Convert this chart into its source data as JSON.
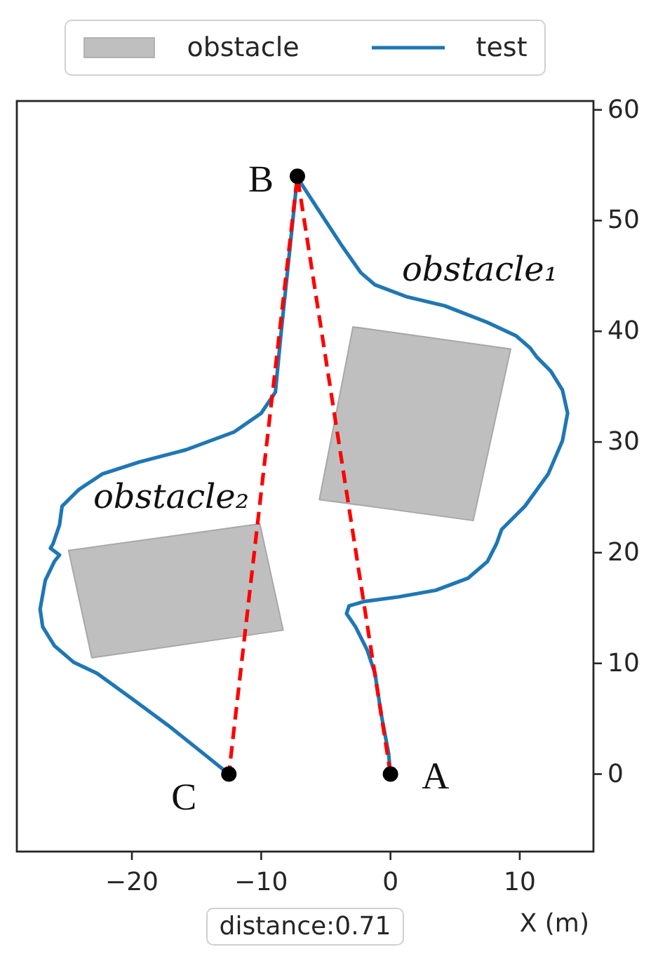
{
  "chart_data": {
    "type": "line",
    "xlabel": "X (m)",
    "legend": "top",
    "annotations": [
      {
        "text": "A",
        "x": 0,
        "y": 0
      },
      {
        "text": "B",
        "x": -7.2,
        "y": 54
      },
      {
        "text": "C",
        "x": -12.5,
        "y": 0
      },
      "obstacle₁",
      "obstacle₂",
      "distance:0.71"
    ],
    "xlim": [
      -28.9,
      15.7
    ],
    "ylim": [
      -7,
      60.8
    ],
    "xticks": [
      -20,
      -10,
      0,
      10
    ],
    "yticks": [
      0,
      10,
      20,
      30,
      40,
      50,
      60
    ],
    "series": [
      {
        "type": "area",
        "name": "obstacle",
        "color": "#bfbfbf",
        "x": [
          -2.9,
          9.3,
          6.4,
          -5.5
        ],
        "values": [
          40.4,
          38.4,
          22.9,
          24.8
        ]
      },
      {
        "type": "area",
        "color": "#bfbfbf",
        "x": [
          -24.9,
          -10.1,
          -8.3,
          -23.1
        ],
        "values": [
          20.2,
          22.6,
          13.0,
          10.5
        ]
      },
      {
        "name": "test",
        "color": "#1f77b4",
        "x": [
          0,
          -0.15,
          -0.7,
          -1.2,
          -1.8,
          -2.7,
          -3.4,
          -3.2,
          -2.0,
          0.6,
          3.5,
          6.0,
          7.5,
          8.2,
          8.6,
          10.4,
          12.2,
          13.3,
          13.7,
          13.3,
          12.4,
          11.3,
          10.8,
          9.7,
          7.5,
          4.2,
          1.3,
          -1.2,
          -2.3,
          -3.8,
          -5.2,
          -7.1,
          -7.2,
          -8.5,
          -8.9,
          -10.0,
          -12.1,
          -15.8,
          -19.4,
          -22.3,
          -24.1,
          -25.4,
          -25.6,
          -26.1,
          -26.3,
          -25.6,
          -26.0,
          -26.7,
          -27.1,
          -26.9,
          -26.0,
          -24.5,
          -22.7,
          -20.1,
          -17.2,
          -14.3,
          -12.5
        ],
        "values": [
          0,
          1.9,
          5.3,
          9.1,
          11.2,
          13.3,
          14.5,
          15.2,
          15.6,
          16.0,
          16.6,
          17.7,
          19.2,
          20.8,
          22.1,
          24.2,
          27.1,
          30.1,
          32.6,
          34.7,
          36.4,
          37.7,
          38.5,
          39.6,
          40.8,
          42.3,
          43.1,
          44.2,
          45.3,
          47.8,
          50.3,
          53.7,
          54,
          39.4,
          34.5,
          32.6,
          30.9,
          29.3,
          28.2,
          27.1,
          25.7,
          24.2,
          22.5,
          20.8,
          20.4,
          19.8,
          19.2,
          17.5,
          14.9,
          13.3,
          11.6,
          10.1,
          9.1,
          6.9,
          4.4,
          1.7,
          0
        ]
      },
      {
        "color": "#ff0000",
        "line_style": "dashed",
        "x": [
          0,
          -7.2,
          -12.5
        ],
        "values": [
          0,
          54,
          0
        ]
      },
      {
        "type": "scatter",
        "color": "#000000",
        "marker": "circle",
        "x": [
          0,
          -7.2,
          -12.5
        ],
        "values": [
          0,
          54,
          0
        ]
      }
    ]
  }
}
